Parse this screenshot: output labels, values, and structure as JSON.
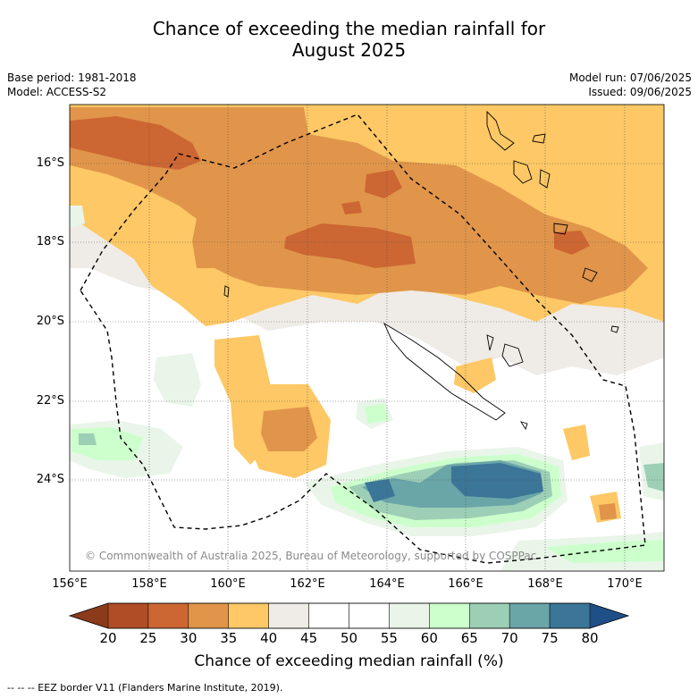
{
  "title_line1": "Chance of exceeding the median rainfall for",
  "title_line2": "August 2025",
  "meta": {
    "base_period": "Base period: 1981-2018",
    "model": "Model: ACCESS-S2",
    "model_run": "Model run: 07/06/2025",
    "issued": "Issued: 09/06/2025"
  },
  "axes": {
    "lat_ticks": [
      "16°S",
      "18°S",
      "20°S",
      "22°S",
      "24°S"
    ],
    "lon_ticks": [
      "156°E",
      "158°E",
      "160°E",
      "162°E",
      "164°E",
      "166°E",
      "168°E",
      "170°E"
    ]
  },
  "copyright": "© Commonwealth of Australia 2025, Bureau of Meteorology, supported by COSPPac",
  "colorbar": {
    "ticks": [
      "20",
      "25",
      "30",
      "35",
      "40",
      "45",
      "50",
      "55",
      "60",
      "65",
      "70",
      "75",
      "80"
    ],
    "colors": [
      "#8c3a1c",
      "#b04d26",
      "#cc6633",
      "#e0954a",
      "#fdc865",
      "#efebe6",
      "#ffffff",
      "#ffffff",
      "#e9f5e9",
      "#ccffcc",
      "#9ccfb5",
      "#6aa5a8",
      "#3b7597",
      "#1f4f86"
    ],
    "label": "Chance of exceeding median rainfall (%)"
  },
  "footnote": "--  --  -- EEZ border V11 (Flanders Marine Institute, 2019)."
}
